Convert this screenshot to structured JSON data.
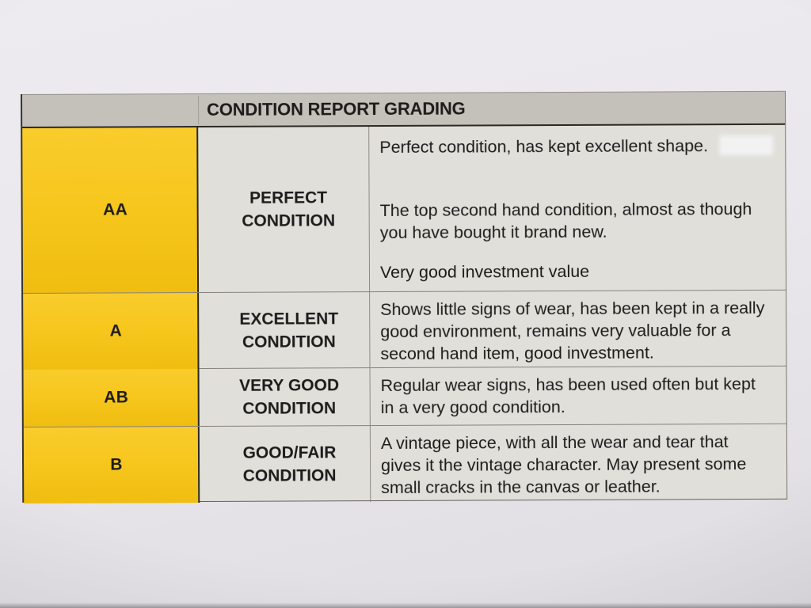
{
  "table": {
    "title": "CONDITION REPORT GRADING",
    "rows": [
      {
        "grade": "AA",
        "condition": "PERFECT CONDITION",
        "description": [
          "Perfect condition, has kept excellent shape.",
          "The top second hand condition, almost as though you have bought it brand new.",
          "Very good investment value"
        ]
      },
      {
        "grade": "A",
        "condition": "EXCELLENT CONDITION",
        "description": [
          "Shows little signs of wear, has been kept in a really good environment, remains very valuable for a second hand item, good investment."
        ]
      },
      {
        "grade": "AB",
        "condition": "VERY GOOD CONDITION",
        "description": [
          "Regular wear signs, has been used often but kept in a very good condition."
        ]
      },
      {
        "grade": "B",
        "condition": "GOOD/FAIR CONDITION",
        "description": [
          "A vintage piece, with all the wear and tear that gives it the vintage character. May present some small cracks in the canvas or leather."
        ]
      }
    ]
  },
  "colors": {
    "paper": "#E9E7EB",
    "header_gray": "#C4C0BA",
    "grade_yellow": "#F7C71E",
    "cell_gray": "#E1DFDA",
    "text": "#1D1C1A"
  }
}
